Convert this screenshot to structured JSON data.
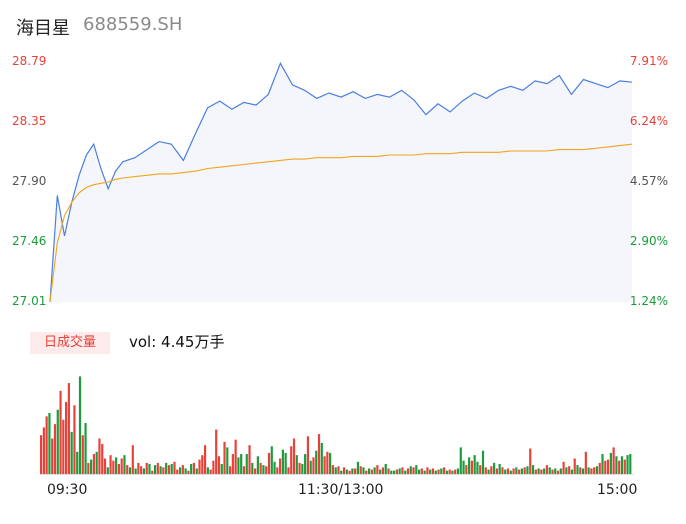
{
  "header": {
    "name": "海目星",
    "code": "688559.SH"
  },
  "colors": {
    "up": "#e8413a",
    "down": "#1a9c3a",
    "price_line": "#4a7fe0",
    "avg_line": "#f2a41e",
    "fill": "#f4f6fb"
  },
  "volume": {
    "badge": "日成交量",
    "text": "vol: 4.45万手"
  },
  "chart_data": {
    "type": "line",
    "title": "",
    "xlabel": "",
    "ylabel": "",
    "ylim": [
      27.01,
      28.79
    ],
    "price_ticks": [
      "28.79",
      "28.35",
      "27.90",
      "27.46",
      "27.01"
    ],
    "price_tick_colors": [
      "up",
      "up",
      "neutral",
      "down",
      "down"
    ],
    "pct_ticks": [
      "7.91%",
      "6.24%",
      "4.57%",
      "2.90%",
      "1.24%"
    ],
    "pct_tick_colors": [
      "up",
      "up",
      "neutral",
      "down",
      "down"
    ],
    "time_ticks": [
      "09:30",
      "11:30/13:00",
      "15:00"
    ],
    "x": [
      0,
      3,
      6,
      9,
      12,
      15,
      18,
      21,
      24,
      27,
      30,
      35,
      40,
      45,
      50,
      55,
      60,
      65,
      70,
      75,
      80,
      85,
      90,
      95,
      100,
      105,
      110,
      115,
      120,
      125,
      130,
      135,
      140,
      145,
      150,
      155,
      160,
      165,
      170,
      175,
      180,
      185,
      190,
      195,
      200,
      205,
      210,
      215,
      220,
      225,
      230,
      235,
      240
    ],
    "series": [
      {
        "values": [
          27.01,
          27.8,
          27.5,
          27.75,
          27.95,
          28.1,
          28.18,
          28.0,
          27.85,
          27.98,
          28.05,
          28.08,
          28.14,
          28.2,
          28.18,
          28.06,
          28.26,
          28.45,
          28.5,
          28.44,
          28.49,
          28.47,
          28.55,
          28.78,
          28.62,
          28.58,
          28.52,
          28.56,
          28.53,
          28.57,
          28.52,
          28.55,
          28.53,
          28.58,
          28.51,
          28.4,
          28.48,
          28.42,
          28.5,
          28.56,
          28.52,
          28.58,
          28.61,
          28.58,
          28.65,
          28.63,
          28.69,
          28.55,
          28.66,
          28.63,
          28.6,
          28.65,
          28.64
        ]
      },
      {
        "values": [
          27.01,
          27.45,
          27.65,
          27.75,
          27.82,
          27.86,
          27.88,
          27.89,
          27.9,
          27.92,
          27.93,
          27.94,
          27.95,
          27.96,
          27.96,
          27.97,
          27.98,
          28.0,
          28.01,
          28.02,
          28.03,
          28.04,
          28.05,
          28.06,
          28.07,
          28.07,
          28.08,
          28.08,
          28.08,
          28.09,
          28.09,
          28.09,
          28.1,
          28.1,
          28.1,
          28.11,
          28.11,
          28.11,
          28.12,
          28.12,
          28.12,
          28.12,
          28.13,
          28.13,
          28.13,
          28.13,
          28.14,
          28.14,
          28.14,
          28.15,
          28.16,
          28.17,
          28.18
        ]
      }
    ],
    "volume_series": {
      "values": [
        3.5,
        4.2,
        5.2,
        5.5,
        3.2,
        4.5,
        5.8,
        7.5,
        4.9,
        6.5,
        8.2,
        3.8,
        6.2,
        2.0,
        8.8,
        3.5,
        4.6,
        1.0,
        1.3,
        1.8,
        2.0,
        3.2,
        2.7,
        1.4,
        0.6,
        1.7,
        1.2,
        1.5,
        0.9,
        1.4,
        1.7,
        0.8,
        0.6,
        2.6,
        0.5,
        1.0,
        0.7,
        0.5,
        1.0,
        0.9,
        0.3,
        0.8,
        1.0,
        0.7,
        0.6,
        1.0,
        0.8,
        0.9,
        1.1,
        0.4,
        0.6,
        0.8,
        0.5,
        0.3,
        0.9,
        1.0,
        0.5,
        1.3,
        1.7,
        2.6,
        0.6,
        0.4,
        1.2,
        4.0,
        1.6,
        0.9,
        2.9,
        2.4,
        0.7,
        1.8,
        3.1,
        1.5,
        1.8,
        0.7,
        1.8,
        2.6,
        1.0,
        0.5,
        1.6,
        1.0,
        0.8,
        0.7,
        1.9,
        2.5,
        1.1,
        0.6,
        1.4,
        2.2,
        1.9,
        0.6,
        2.5,
        3.2,
        1.7,
        1.0,
        0.9,
        1.8,
        3.4,
        1.2,
        1.5,
        2.1,
        3.6,
        2.8,
        1.6,
        2.0,
        1.9,
        0.8,
        0.6,
        0.7,
        0.3,
        0.6,
        0.4,
        0.3,
        0.5,
        0.5,
        1.1,
        0.7,
        0.6,
        0.3,
        0.5,
        0.4,
        0.6,
        0.8,
        0.4,
        0.6,
        0.9,
        0.5,
        0.3,
        0.3,
        0.4,
        0.5,
        0.6,
        0.3,
        0.5,
        0.7,
        0.6,
        0.8,
        0.4,
        0.5,
        0.3,
        0.6,
        0.4,
        0.5,
        0.3,
        0.4,
        0.5,
        0.6,
        0.3,
        0.4,
        0.3,
        0.4,
        0.5,
        2.4,
        1.2,
        0.8,
        1.5,
        1.2,
        1.7,
        1.1,
        0.8,
        2.1,
        0.6,
        0.4,
        0.7,
        1.0,
        0.5,
        0.9,
        0.6,
        0.4,
        0.5,
        0.3,
        0.5,
        0.6,
        0.4,
        0.5,
        0.6,
        0.7,
        2.3,
        0.8,
        0.4,
        0.5,
        0.4,
        0.5,
        0.8,
        0.6,
        0.4,
        0.5,
        0.3,
        0.5,
        1.1,
        0.6,
        0.7,
        0.4,
        1.4,
        0.8,
        0.6,
        0.5,
        2.0,
        0.6,
        0.5,
        0.6,
        0.7,
        1.0,
        1.8,
        1.2,
        1.3,
        1.9,
        2.4,
        1.6,
        1.2,
        1.6,
        1.3,
        1.7,
        1.8
      ],
      "directions": [
        "u",
        "u",
        "u",
        "d",
        "u",
        "u",
        "d",
        "u",
        "u",
        "u",
        "u",
        "d",
        "u",
        "d",
        "d",
        "u",
        "d",
        "u",
        "d",
        "u",
        "d",
        "u",
        "u",
        "u",
        "d",
        "u",
        "u",
        "d",
        "u",
        "u",
        "d",
        "u",
        "d",
        "u",
        "d",
        "u",
        "u",
        "d",
        "u",
        "d",
        "u",
        "d",
        "u",
        "d",
        "u",
        "d",
        "u",
        "d",
        "u",
        "u",
        "d",
        "u",
        "d",
        "u",
        "d",
        "u",
        "d",
        "u",
        "u",
        "u",
        "d",
        "u",
        "u",
        "u",
        "u",
        "d",
        "u",
        "d",
        "u",
        "u",
        "u",
        "d",
        "d",
        "u",
        "d",
        "u",
        "d",
        "u",
        "d",
        "u",
        "d",
        "u",
        "u",
        "d",
        "d",
        "u",
        "u",
        "d",
        "d",
        "u",
        "u",
        "u",
        "d",
        "u",
        "d",
        "d",
        "u",
        "d",
        "u",
        "d",
        "u",
        "d",
        "u",
        "u",
        "d",
        "u",
        "d",
        "u",
        "d",
        "u",
        "d",
        "u",
        "d",
        "u",
        "d",
        "u",
        "d",
        "u",
        "d",
        "u",
        "d",
        "u",
        "d",
        "u",
        "d",
        "u",
        "d",
        "d",
        "u",
        "d",
        "u",
        "d",
        "u",
        "d",
        "u",
        "d",
        "d",
        "u",
        "d",
        "u",
        "d",
        "u",
        "d",
        "u",
        "d",
        "u",
        "d",
        "u",
        "d",
        "u",
        "d",
        "d",
        "d",
        "u",
        "d",
        "u",
        "d",
        "d",
        "u",
        "d",
        "u",
        "d",
        "u",
        "d",
        "u",
        "d",
        "u",
        "d",
        "u",
        "d",
        "u",
        "d",
        "u",
        "d",
        "u",
        "d",
        "u",
        "d",
        "u",
        "d",
        "u",
        "d",
        "u",
        "d",
        "u",
        "d",
        "u",
        "d",
        "u",
        "d",
        "u",
        "d",
        "u",
        "d",
        "u",
        "d",
        "u",
        "d",
        "u",
        "u",
        "d",
        "u",
        "d",
        "u",
        "u",
        "d",
        "u",
        "d",
        "u",
        "d",
        "u",
        "d",
        "d",
        "u",
        "u",
        "u",
        "d",
        "u",
        "d",
        "u",
        "d",
        "d",
        "d"
      ]
    }
  }
}
